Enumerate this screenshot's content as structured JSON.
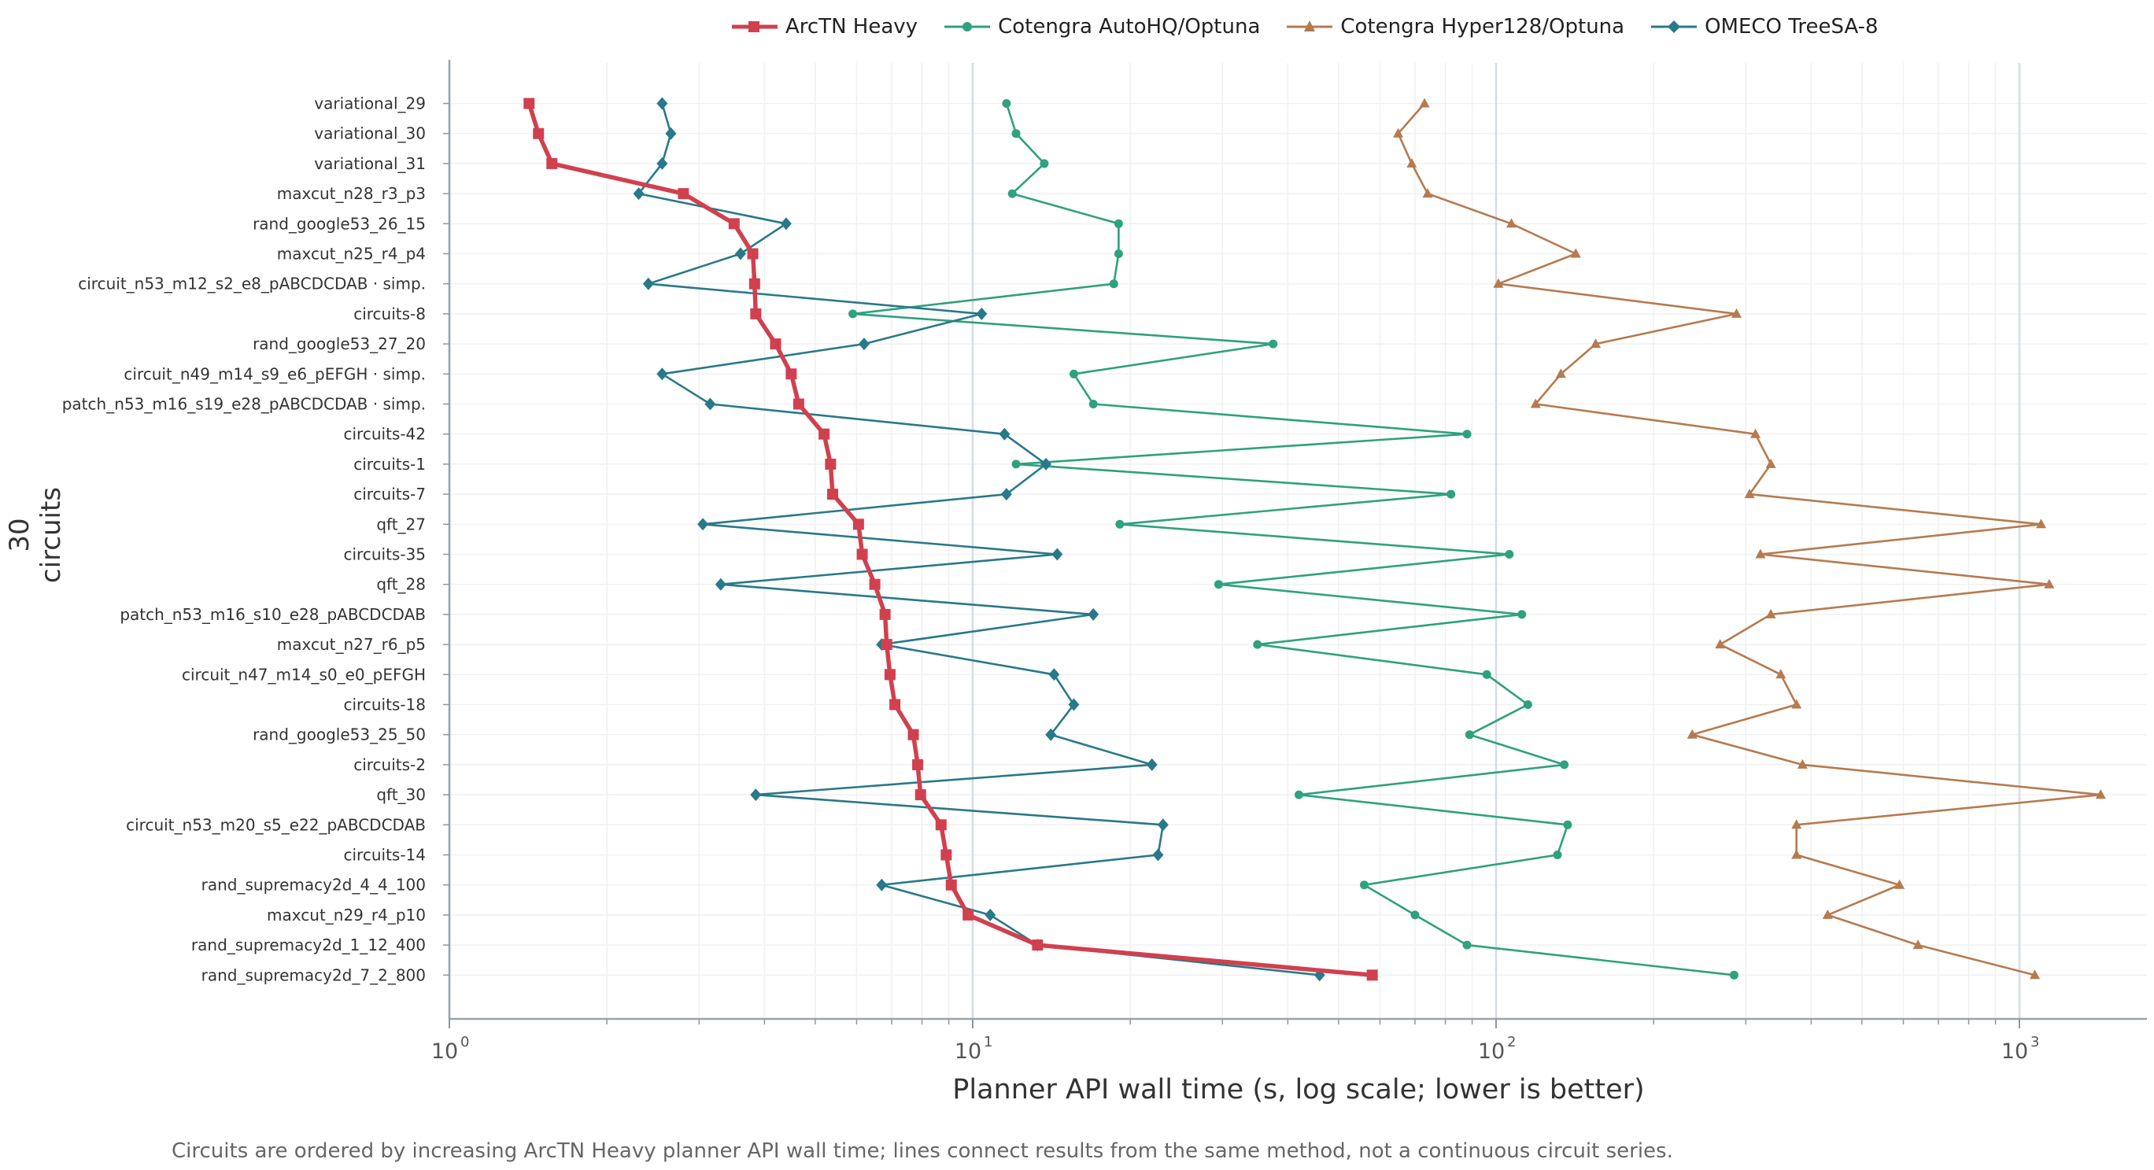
{
  "chart_data": {
    "type": "line",
    "xlabel": "Planner API wall time (s, log scale; lower is better)",
    "ylabel": "30 circuits",
    "xscale": "log",
    "xlim": [
      1,
      1600
    ],
    "x_ticks": [
      1,
      10,
      100,
      1000
    ],
    "x_tick_labels": [
      "10",
      "10",
      "10",
      "10"
    ],
    "x_tick_exponents": [
      "0",
      "1",
      "2",
      "3"
    ],
    "grid": true,
    "legend_position": "top",
    "caption": "Circuits are ordered by increasing ArcTN Heavy planner API wall time; lines connect results from the same method, not a continuous circuit series.",
    "categories": [
      "variational_29",
      "variational_30",
      "variational_31",
      "maxcut_n28_r3_p3",
      "rand_google53_26_15",
      "maxcut_n25_r4_p4",
      "circuit_n53_m12_s2_e8_pABCDCDAB ·   simp.",
      "circuits-8",
      "rand_google53_27_20",
      "circuit_n49_m14_s9_e6_pEFGH ·   simp.",
      "patch_n53_m16_s19_e28_pABCDCDAB ·   simp.",
      "circuits-42",
      "circuits-1",
      "circuits-7",
      "qft_27",
      "circuits-35",
      "qft_28",
      "patch_n53_m16_s10_e28_pABCDCDAB",
      "maxcut_n27_r6_p5",
      "circuit_n47_m14_s0_e0_pEFGH",
      "circuits-18",
      "rand_google53_25_50",
      "circuits-2",
      "qft_30",
      "circuit_n53_m20_s5_e22_pABCDCDAB",
      "circuits-14",
      "rand_supremacy2d_4_4_100",
      "maxcut_n29_r4_p10",
      "rand_supremacy2d_1_12_400",
      "rand_supremacy2d_7_2_800"
    ],
    "series": [
      {
        "name": "ArcTN Heavy",
        "color": "#d1404e",
        "marker": "square",
        "values": [
          1.42,
          1.48,
          1.57,
          2.8,
          3.5,
          3.8,
          3.83,
          3.85,
          4.2,
          4.5,
          4.65,
          5.2,
          5.35,
          5.4,
          6.05,
          6.15,
          6.5,
          6.8,
          6.85,
          6.95,
          7.1,
          7.7,
          7.85,
          7.95,
          8.7,
          8.9,
          9.1,
          9.8,
          13.3,
          58.0
        ]
      },
      {
        "name": "Cotengra AutoHQ/Optuna",
        "color": "#2ea17f",
        "marker": "circle",
        "values": [
          11.6,
          12.1,
          13.7,
          11.9,
          19.0,
          19.0,
          18.6,
          5.9,
          37.5,
          15.6,
          17.0,
          88.0,
          12.1,
          82.0,
          19.1,
          106.0,
          29.5,
          112.0,
          35.0,
          96.0,
          115.0,
          89.0,
          135.0,
          42.0,
          137.0,
          131.0,
          56.0,
          70.0,
          88.0,
          285.0
        ]
      },
      {
        "name": "Cotengra Hyper128/Optuna",
        "color": "#b67a4f",
        "marker": "triangle",
        "values": [
          73.0,
          65.0,
          69.0,
          74.0,
          107.0,
          142.0,
          101.0,
          288.0,
          155.0,
          133.0,
          119.0,
          313.0,
          335.0,
          305.0,
          1100.0,
          320.0,
          1140.0,
          335.0,
          268.0,
          350.0,
          375.0,
          237.0,
          385.0,
          1430.0,
          375.0,
          375.0,
          590.0,
          430.0,
          640.0,
          1070.0
        ]
      },
      {
        "name": "OMECO TreeSA-8",
        "color": "#287989",
        "marker": "diamond",
        "values": [
          2.55,
          2.65,
          2.55,
          2.3,
          4.4,
          3.6,
          2.4,
          10.4,
          6.2,
          2.55,
          3.15,
          11.5,
          13.8,
          11.6,
          3.05,
          14.5,
          3.3,
          17.0,
          6.7,
          14.3,
          15.6,
          14.1,
          22.0,
          3.85,
          23.1,
          22.6,
          6.7,
          10.8,
          13.3,
          46.0
        ]
      }
    ]
  }
}
